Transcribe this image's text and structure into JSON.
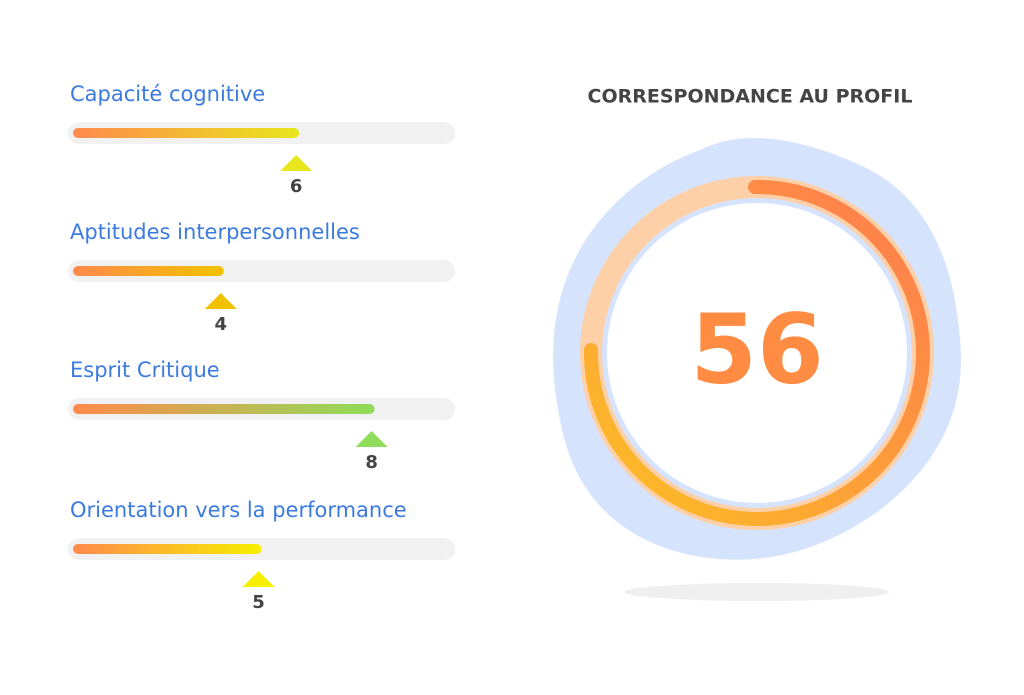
{
  "skills": {
    "xlim": [
      0,
      10
    ],
    "items": [
      {
        "label": "Capacité cognitive",
        "value": 6,
        "color": "#e8e61c"
      },
      {
        "label": "Aptitudes interpersonnelles",
        "value": 4,
        "color": "#f2c200"
      },
      {
        "label": "Esprit Critique",
        "value": 8,
        "color": "#8fdc5a"
      },
      {
        "label": "Orientation vers la performance",
        "value": 5,
        "color": "#f7ef00"
      }
    ]
  },
  "score": {
    "title": "CORRESPONDANCE AU PROFIL",
    "value": 56
  }
}
